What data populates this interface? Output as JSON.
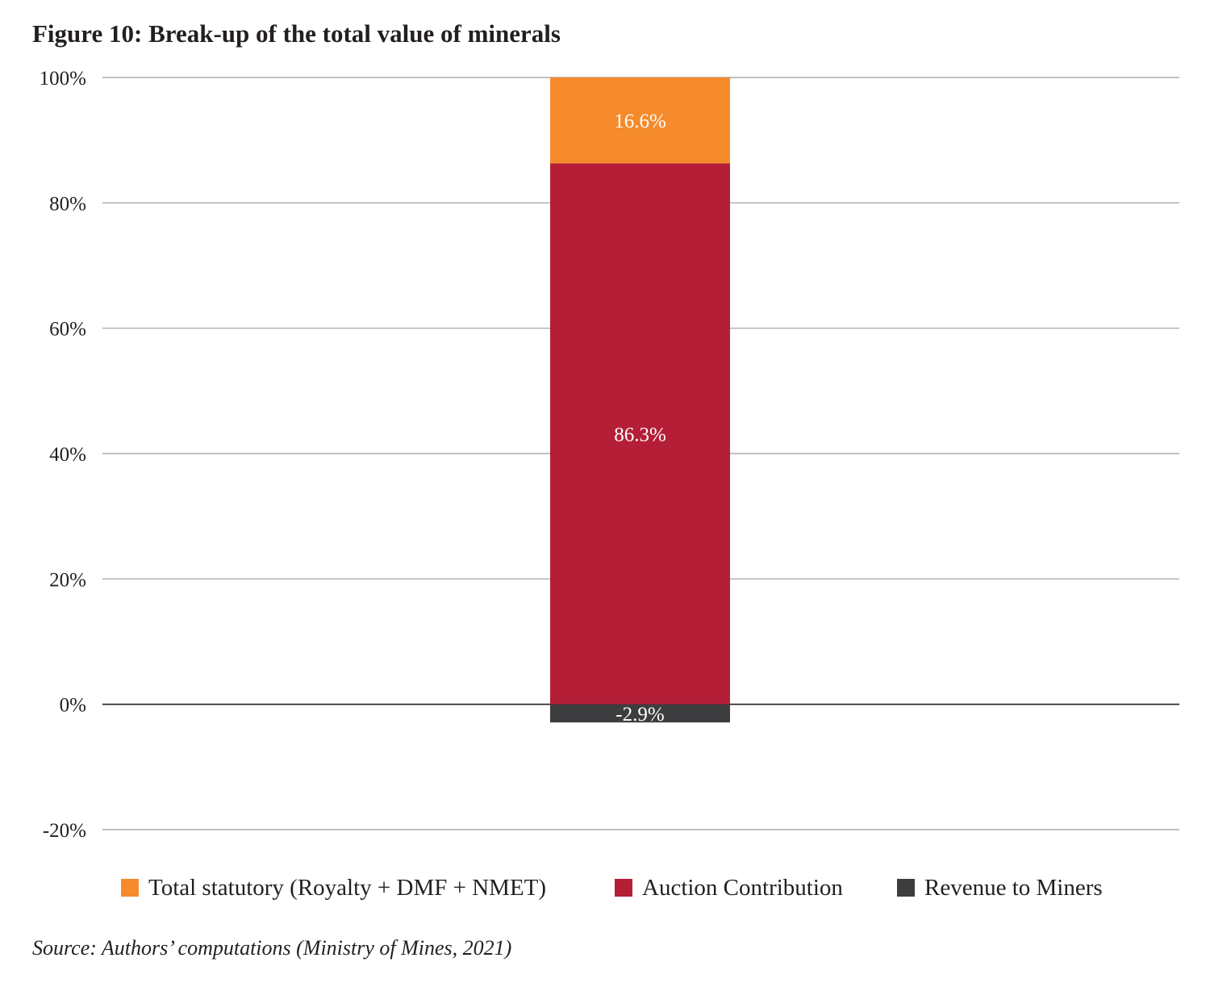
{
  "title": "Figure 10: Break-up of the total value of minerals",
  "source": "Source: Authors’ computations (Ministry of Mines, 2021)",
  "chart_data": {
    "type": "bar",
    "stacked": true,
    "categories": [
      ""
    ],
    "series": [
      {
        "name": "Total statutory (Royalty + DMF + NMET)",
        "values": [
          16.6
        ],
        "label": "16.6%",
        "color": "#f58b2c"
      },
      {
        "name": "Auction Contribution",
        "values": [
          86.3
        ],
        "label": "86.3%",
        "color": "#b51e37"
      },
      {
        "name": "Revenue to Miners",
        "values": [
          -2.9
        ],
        "label": "-2.9%",
        "color": "#3d3d3f"
      }
    ],
    "ylim": [
      -20,
      100
    ],
    "yticks": [
      100,
      80,
      60,
      40,
      20,
      0,
      -20
    ],
    "ytick_labels": [
      "100%",
      "80%",
      "60%",
      "40%",
      "20%",
      "0%",
      "-20%"
    ],
    "grid": true,
    "legend_position": "bottom"
  }
}
